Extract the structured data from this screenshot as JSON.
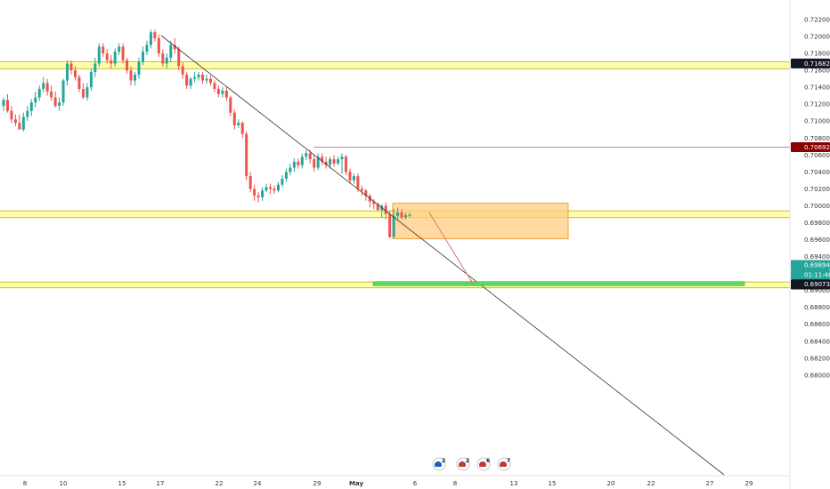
{
  "chart_data": {
    "type": "candlestick",
    "title": "",
    "xlabel": "",
    "ylabel": "",
    "y_axis_side": "right",
    "ylim": [
      0.679,
      0.7225
    ],
    "grid": false,
    "y_ticks": [
      "0.72200",
      "0.72000",
      "0.71800",
      "0.71600",
      "0.71400",
      "0.71200",
      "0.71000",
      "0.70800",
      "0.70600",
      "0.70400",
      "0.70200",
      "0.70000",
      "0.69800",
      "0.69600",
      "0.69400",
      "0.69200",
      "0.69000",
      "0.68800",
      "0.68600",
      "0.68400",
      "0.68200",
      "0.68000"
    ],
    "x_ticks": [
      "8",
      "10",
      "15",
      "17",
      "22",
      "24",
      "29",
      "May",
      "6",
      "8",
      "13",
      "15",
      "20",
      "22",
      "27",
      "29"
    ],
    "price_labels": [
      {
        "value": "0.71682",
        "color": "#131722"
      },
      {
        "value": "0.70692",
        "color": "#8b0000"
      },
      {
        "value": "0.69894",
        "color": "#26a69a"
      },
      {
        "value": "01:11:48",
        "color": "#26a69a"
      },
      {
        "value": "0.69878",
        "color": "#131722"
      },
      {
        "value": "0.69073",
        "color": "#131722"
      }
    ],
    "horizontal_zones": [
      {
        "price_top": 0.717,
        "price_bottom": 0.7162,
        "color": "#ffff66"
      },
      {
        "price_top": 0.6994,
        "price_bottom": 0.6986,
        "color": "#ffff66"
      },
      {
        "price_top": 0.691,
        "price_bottom": 0.6903,
        "color": "#ffff66"
      }
    ],
    "horizontal_lines": [
      {
        "price": 0.70692,
        "color": "#b98a8a"
      }
    ],
    "boxes": [
      {
        "price_top": 0.7003,
        "price_bottom": 0.6961,
        "color": "#ffcc80"
      }
    ],
    "target_band": {
      "price_top": 0.69105,
      "price_bottom": 0.69055,
      "color": "#5cd65c"
    },
    "trendline": {
      "color": "#333333"
    },
    "projection_arrow": {
      "price_from": 0.6992,
      "price_to": 0.6908,
      "color": "#e57373"
    },
    "candles_open": [
      0.7118,
      0.7125,
      0.7112,
      0.7102,
      0.7098,
      0.709,
      0.7105,
      0.7112,
      0.7122,
      0.7128,
      0.7138,
      0.7145,
      0.7135,
      0.7128,
      0.7118,
      0.7122,
      0.7148,
      0.7168,
      0.716,
      0.7152,
      0.7138,
      0.7128,
      0.714,
      0.7158,
      0.7168,
      0.7188,
      0.718,
      0.7172,
      0.7168,
      0.7182,
      0.7188,
      0.7172,
      0.716,
      0.7148,
      0.7155,
      0.717,
      0.7182,
      0.719,
      0.7205,
      0.7198,
      0.718,
      0.7168,
      0.7175,
      0.719,
      0.7185,
      0.7165,
      0.7155,
      0.7142,
      0.715,
      0.7152,
      0.7155,
      0.7148,
      0.715,
      0.7145,
      0.7138,
      0.7132,
      0.7136,
      0.7128,
      0.711,
      0.7095,
      0.7098,
      0.7085,
      0.7035,
      0.702,
      0.7012,
      0.701,
      0.7018,
      0.7022,
      0.702,
      0.7018,
      0.7025,
      0.7032,
      0.704,
      0.7045,
      0.7052,
      0.7048,
      0.7058,
      0.7062,
      0.7055,
      0.7045,
      0.7058,
      0.7052,
      0.7048,
      0.7055,
      0.705,
      0.7055,
      0.7058,
      0.704,
      0.703,
      0.7035,
      0.702,
      0.7018,
      0.7012,
      0.7005,
      0.7002,
      0.6995,
      0.7,
      0.699,
      0.6963,
      0.6988,
      0.6992,
      0.6986,
      0.6989
    ],
    "candles_high": [
      0.7128,
      0.7132,
      0.7118,
      0.7108,
      0.7108,
      0.711,
      0.7118,
      0.7126,
      0.7135,
      0.7142,
      0.7152,
      0.715,
      0.7142,
      0.7135,
      0.7128,
      0.715,
      0.7172,
      0.7172,
      0.7165,
      0.7155,
      0.7145,
      0.7145,
      0.7162,
      0.7175,
      0.7192,
      0.7192,
      0.7185,
      0.7178,
      0.7186,
      0.7192,
      0.7192,
      0.7175,
      0.7165,
      0.7158,
      0.7175,
      0.7188,
      0.7195,
      0.7208,
      0.7208,
      0.7202,
      0.7185,
      0.718,
      0.7195,
      0.7198,
      0.7188,
      0.717,
      0.7158,
      0.7152,
      0.7158,
      0.7158,
      0.7158,
      0.7155,
      0.7154,
      0.7148,
      0.7142,
      0.714,
      0.714,
      0.713,
      0.7114,
      0.7102,
      0.71,
      0.7088,
      0.704,
      0.7025,
      0.7016,
      0.7022,
      0.7026,
      0.7026,
      0.7024,
      0.7028,
      0.7036,
      0.7044,
      0.705,
      0.7056,
      0.7056,
      0.7062,
      0.7066,
      0.7066,
      0.706,
      0.7062,
      0.7062,
      0.7058,
      0.7058,
      0.706,
      0.7058,
      0.7062,
      0.706,
      0.7044,
      0.7038,
      0.7038,
      0.7024,
      0.702,
      0.7014,
      0.7008,
      0.7004,
      0.7002,
      0.7004,
      0.6994,
      0.6996,
      0.6998,
      0.6996,
      0.6992,
      0.6992
    ],
    "candles_low": [
      0.7112,
      0.711,
      0.7098,
      0.7094,
      0.7092,
      0.7088,
      0.71,
      0.7106,
      0.7116,
      0.7124,
      0.7134,
      0.713,
      0.7124,
      0.7116,
      0.7112,
      0.7118,
      0.7142,
      0.7155,
      0.7148,
      0.7134,
      0.7126,
      0.7124,
      0.7136,
      0.7152,
      0.7164,
      0.7176,
      0.7168,
      0.7162,
      0.7164,
      0.7178,
      0.7168,
      0.7156,
      0.7142,
      0.7142,
      0.715,
      0.7166,
      0.7178,
      0.7186,
      0.7194,
      0.7176,
      0.7164,
      0.7162,
      0.717,
      0.718,
      0.716,
      0.715,
      0.7138,
      0.7138,
      0.7146,
      0.7148,
      0.7144,
      0.7144,
      0.7142,
      0.7134,
      0.7128,
      0.7128,
      0.7124,
      0.7106,
      0.709,
      0.7092,
      0.708,
      0.703,
      0.7016,
      0.7006,
      0.7004,
      0.7006,
      0.7016,
      0.7014,
      0.7014,
      0.7016,
      0.7022,
      0.7028,
      0.7036,
      0.704,
      0.7044,
      0.7044,
      0.7054,
      0.705,
      0.704,
      0.7042,
      0.7048,
      0.7044,
      0.7044,
      0.7046,
      0.7048,
      0.7038,
      0.7036,
      0.7026,
      0.7026,
      0.7016,
      0.7012,
      0.7006,
      0.6998,
      0.6996,
      0.6994,
      0.6986,
      0.6984,
      0.6962,
      0.6962,
      0.6984,
      0.6984,
      0.6984,
      0.6986
    ],
    "candles_close": [
      0.7125,
      0.7112,
      0.7102,
      0.7098,
      0.709,
      0.7105,
      0.7112,
      0.7122,
      0.7128,
      0.7138,
      0.7145,
      0.7135,
      0.7128,
      0.7118,
      0.7122,
      0.7148,
      0.7168,
      0.716,
      0.7152,
      0.7138,
      0.7128,
      0.714,
      0.7158,
      0.7168,
      0.7188,
      0.718,
      0.7172,
      0.7168,
      0.7182,
      0.7188,
      0.7172,
      0.716,
      0.7148,
      0.7155,
      0.717,
      0.7182,
      0.719,
      0.7205,
      0.7198,
      0.718,
      0.7168,
      0.7175,
      0.719,
      0.7185,
      0.7165,
      0.7155,
      0.7142,
      0.715,
      0.7152,
      0.7155,
      0.7148,
      0.715,
      0.7145,
      0.7138,
      0.7132,
      0.7136,
      0.7128,
      0.711,
      0.7095,
      0.7098,
      0.7085,
      0.7035,
      0.702,
      0.7012,
      0.701,
      0.7018,
      0.7022,
      0.702,
      0.7018,
      0.7025,
      0.7032,
      0.704,
      0.7045,
      0.7052,
      0.7048,
      0.7058,
      0.7062,
      0.7055,
      0.7045,
      0.7058,
      0.7052,
      0.7048,
      0.7055,
      0.705,
      0.7055,
      0.7058,
      0.704,
      0.703,
      0.7035,
      0.702,
      0.7018,
      0.7012,
      0.7005,
      0.7002,
      0.6995,
      0.7,
      0.699,
      0.6963,
      0.6988,
      0.6992,
      0.6986,
      0.6989,
      0.6989
    ],
    "up_color": "#26a69a",
    "down_color": "#ef5350",
    "event_markers": [
      {
        "label": "2"
      },
      {
        "label": "2"
      },
      {
        "label": "6"
      },
      {
        "label": "7"
      }
    ]
  }
}
